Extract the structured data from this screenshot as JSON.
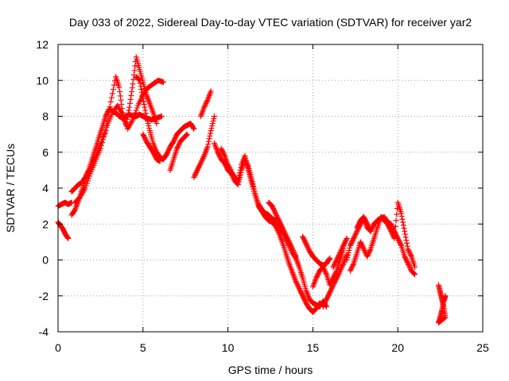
{
  "chart_data": {
    "type": "scatter",
    "title": "Day 033 of 2022, Sidereal Day-to-day VTEC variation (SDTVAR) for receiver yar2",
    "xlabel": "GPS time / hours",
    "ylabel": "SDTVAR / TECUs",
    "xlim": [
      0,
      25
    ],
    "ylim": [
      -4,
      12
    ],
    "xticks": [
      0,
      5,
      10,
      15,
      20,
      25
    ],
    "yticks": [
      -4,
      -2,
      0,
      2,
      4,
      6,
      8,
      10,
      12
    ],
    "grid": true,
    "marker": "+",
    "color": "#ff0000",
    "series": [
      {
        "name": "SDTVAR",
        "segments": [
          {
            "x": [
              0.0,
              0.2,
              0.4,
              0.6,
              0.8
            ],
            "y": [
              3.0,
              3.1,
              3.2,
              3.1,
              3.2
            ]
          },
          {
            "x": [
              0.0,
              0.15,
              0.3,
              0.45,
              0.6
            ],
            "y": [
              2.1,
              1.9,
              1.7,
              1.4,
              1.2
            ]
          },
          {
            "x": [
              0.8,
              1.0,
              1.2,
              1.4,
              1.6,
              1.8,
              2.0,
              2.2,
              2.4,
              2.6,
              2.8,
              3.0,
              3.2,
              3.4,
              3.6,
              3.8,
              4.0,
              4.2,
              4.4,
              4.6,
              4.8,
              5.0,
              5.2,
              5.5,
              5.8,
              6.1
            ],
            "y": [
              3.8,
              4.0,
              4.2,
              4.3,
              4.6,
              5.0,
              5.6,
              6.2,
              6.8,
              7.4,
              8.0,
              8.4,
              8.3,
              8.2,
              8.0,
              7.9,
              8.0,
              8.1,
              8.0,
              8.0,
              8.1,
              8.0,
              7.9,
              7.8,
              7.9,
              8.0
            ]
          },
          {
            "x": [
              1.0,
              1.3,
              1.6,
              1.9,
              2.2,
              2.5,
              2.8,
              3.1,
              3.4,
              3.6,
              3.8,
              4.0,
              4.2,
              4.4,
              4.6,
              4.8,
              5.0,
              5.2,
              5.4,
              5.6,
              5.8
            ],
            "y": [
              3.2,
              3.5,
              4.0,
              4.8,
              5.5,
              6.2,
              7.2,
              8.8,
              10.2,
              9.6,
              8.2,
              7.5,
              8.5,
              9.8,
              11.3,
              10.6,
              9.9,
              9.2,
              8.7,
              8.2,
              7.6
            ]
          },
          {
            "x": [
              0.8,
              1.0,
              1.2,
              1.4,
              1.7,
              2.0,
              2.3,
              2.6,
              2.9,
              3.2,
              3.5,
              3.8,
              4.1,
              4.4,
              4.7,
              5.0,
              5.3,
              5.6,
              5.9,
              6.2
            ],
            "y": [
              2.5,
              2.8,
              3.3,
              3.9,
              4.6,
              5.3,
              6.0,
              6.7,
              7.5,
              8.2,
              8.6,
              8.1,
              7.3,
              7.8,
              8.6,
              9.2,
              9.6,
              9.8,
              10.0,
              9.9
            ]
          },
          {
            "x": [
              4.6,
              4.8,
              5.0,
              5.2,
              5.4,
              5.6,
              5.8,
              6.0,
              6.2,
              6.4,
              6.6,
              6.8,
              7.0,
              7.2,
              7.4,
              7.6,
              7.8,
              8.0
            ],
            "y": [
              10.2,
              10.0,
              9.0,
              8.0,
              7.2,
              6.5,
              6.0,
              5.7,
              5.6,
              5.9,
              6.3,
              6.6,
              7.0,
              7.2,
              7.4,
              7.5,
              7.6,
              7.3
            ]
          },
          {
            "x": [
              5.0,
              5.2,
              5.4,
              5.6,
              5.8,
              6.0
            ],
            "y": [
              7.0,
              6.6,
              6.3,
              6.0,
              5.6,
              5.5
            ]
          },
          {
            "x": [
              6.6,
              6.8,
              7.0,
              7.2,
              7.4,
              7.6
            ],
            "y": [
              5.0,
              5.6,
              6.2,
              6.6,
              6.8,
              7.0
            ]
          },
          {
            "x": [
              8.0,
              8.2,
              8.4,
              8.6,
              8.8,
              9.0,
              9.2
            ],
            "y": [
              4.6,
              5.0,
              5.4,
              5.8,
              6.3,
              7.2,
              8.0
            ]
          },
          {
            "x": [
              8.4,
              8.6,
              8.8,
              9.0
            ],
            "y": [
              8.0,
              8.5,
              8.9,
              9.4
            ]
          },
          {
            "x": [
              9.2,
              9.4,
              9.6,
              9.8,
              10.0,
              10.2,
              10.4,
              10.6,
              10.8,
              11.0,
              11.2,
              11.4,
              11.6,
              11.8,
              12.0,
              12.2,
              12.4,
              12.6,
              12.8,
              13.0,
              13.2,
              13.4,
              13.6,
              13.8,
              14.0,
              14.2,
              14.4,
              14.6,
              14.8,
              15.0,
              15.2,
              15.4,
              15.6,
              15.8
            ],
            "y": [
              6.5,
              6.0,
              5.6,
              5.4,
              5.0,
              4.8,
              4.4,
              4.2,
              5.0,
              5.6,
              5.2,
              4.5,
              3.7,
              3.1,
              2.8,
              2.6,
              2.5,
              2.3,
              2.2,
              2.0,
              1.6,
              1.2,
              0.8,
              0.4,
              0.1,
              -0.4,
              -1.0,
              -1.7,
              -2.2,
              -2.4,
              -2.5,
              -2.6,
              -2.3,
              -2.6
            ]
          },
          {
            "x": [
              9.6,
              9.8,
              10.0,
              10.2,
              10.4,
              10.6,
              10.8,
              11.0,
              11.2,
              11.4,
              11.6,
              11.8,
              12.0,
              12.2,
              12.4,
              12.6,
              12.8,
              13.0,
              13.2,
              13.4,
              13.6,
              13.8,
              14.0,
              14.2,
              14.4,
              14.6,
              14.8,
              15.0,
              15.2,
              15.4
            ],
            "y": [
              6.2,
              5.8,
              5.3,
              4.9,
              4.6,
              4.4,
              5.3,
              5.8,
              5.0,
              4.3,
              3.6,
              3.0,
              2.7,
              2.4,
              2.2,
              2.1,
              1.9,
              1.5,
              1.0,
              0.4,
              -0.2,
              -0.7,
              -1.2,
              -1.6,
              -2.0,
              -2.4,
              -2.7,
              -2.9,
              -2.7,
              -2.4
            ]
          },
          {
            "x": [
              12.4,
              12.6,
              12.8,
              13.0,
              13.2,
              13.4,
              13.6,
              13.8,
              14.0
            ],
            "y": [
              3.2,
              3.0,
              2.6,
              2.2,
              1.8,
              1.4,
              1.0,
              0.6,
              0.2
            ]
          },
          {
            "x": [
              14.4,
              14.6,
              14.8,
              15.0,
              15.2,
              15.4,
              15.6,
              15.8,
              16.0
            ],
            "y": [
              1.3,
              0.9,
              0.5,
              0.2,
              0.0,
              -0.2,
              -0.3,
              -0.2,
              0.1
            ]
          },
          {
            "x": [
              15.0,
              15.2,
              15.4,
              15.6,
              15.8,
              16.0,
              16.2,
              16.4,
              16.6,
              16.8
            ],
            "y": [
              -1.5,
              -1.0,
              -0.6,
              -0.4,
              -0.8,
              -1.4,
              -1.0,
              -0.6,
              0.0,
              0.6
            ]
          },
          {
            "x": [
              15.6,
              15.8,
              16.0,
              16.2,
              16.4,
              16.6,
              16.8,
              17.0
            ],
            "y": [
              -2.6,
              -2.2,
              -1.8,
              -1.4,
              -1.0,
              -0.6,
              -0.2,
              0.3
            ]
          },
          {
            "x": [
              16.2,
              16.4,
              16.6,
              16.8,
              17.0
            ],
            "y": [
              -0.4,
              0.0,
              0.4,
              0.8,
              1.2
            ]
          },
          {
            "x": [
              17.0,
              17.2,
              17.4,
              17.6,
              17.8,
              18.0,
              18.2,
              18.4,
              18.6,
              18.8,
              19.0,
              19.2,
              19.4,
              19.6,
              19.8,
              20.0,
              20.2,
              20.4,
              20.6,
              20.8,
              21.0
            ],
            "y": [
              0.0,
              0.8,
              1.2,
              1.6,
              2.0,
              2.3,
              1.8,
              1.6,
              2.0,
              2.2,
              2.3,
              2.4,
              2.1,
              2.0,
              1.6,
              1.2,
              0.8,
              0.2,
              -0.2,
              -0.6,
              -0.8
            ]
          },
          {
            "x": [
              17.2,
              17.4,
              17.6,
              17.8,
              18.0,
              18.2,
              18.4,
              18.6,
              18.8,
              19.0,
              19.2,
              19.4,
              19.6,
              19.8,
              20.0,
              20.2,
              20.4,
              20.6,
              20.8,
              21.0
            ],
            "y": [
              -0.6,
              -0.2,
              0.4,
              1.0,
              0.6,
              0.2,
              0.6,
              1.2,
              1.8,
              2.4,
              2.2,
              2.0,
              1.6,
              1.2,
              3.2,
              2.6,
              1.6,
              0.6,
              0.2,
              -0.4
            ]
          },
          {
            "x": [
              17.6,
              17.8,
              18.0,
              18.2,
              18.4
            ],
            "y": [
              1.8,
              2.2,
              2.4,
              2.0,
              1.6
            ]
          },
          {
            "x": [
              22.4,
              22.5,
              22.6,
              22.7,
              22.8,
              22.4,
              22.5,
              22.6,
              22.7,
              22.8
            ],
            "y": [
              -1.4,
              -1.8,
              -2.2,
              -2.6,
              -3.2,
              -3.5,
              -3.2,
              -2.8,
              -2.3,
              -2.0
            ]
          }
        ]
      }
    ]
  }
}
